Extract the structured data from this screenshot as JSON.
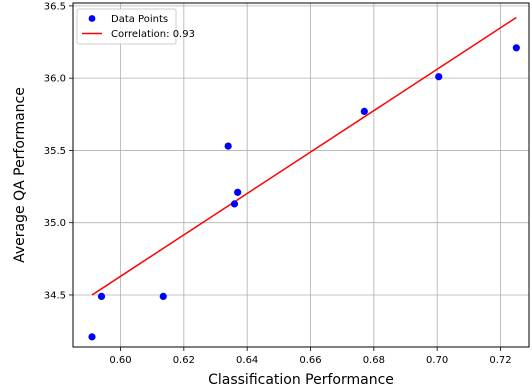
{
  "chart_data": {
    "type": "scatter",
    "xlabel": "Classification Performance",
    "ylabel": "Average QA Performance",
    "xlim": [
      0.585,
      0.729
    ],
    "ylim": [
      34.14,
      36.52
    ],
    "xticks": [
      0.6,
      0.62,
      0.64,
      0.66,
      0.68,
      0.7,
      0.72
    ],
    "xtick_labels": [
      "0.60",
      "0.62",
      "0.64",
      "0.66",
      "0.68",
      "0.70",
      "0.72"
    ],
    "yticks": [
      34.5,
      35.0,
      35.5,
      36.0,
      36.5
    ],
    "ytick_labels": [
      "34.5",
      "35.0",
      "35.5",
      "36.0",
      "36.5"
    ],
    "grid": true,
    "legend_position": "top-left",
    "series": [
      {
        "name": "Data Points",
        "kind": "scatter",
        "color": "#0000ff",
        "points": [
          {
            "x": 0.591,
            "y": 34.21
          },
          {
            "x": 0.594,
            "y": 34.49
          },
          {
            "x": 0.6135,
            "y": 34.49
          },
          {
            "x": 0.634,
            "y": 35.53
          },
          {
            "x": 0.636,
            "y": 35.13
          },
          {
            "x": 0.637,
            "y": 35.21
          },
          {
            "x": 0.677,
            "y": 35.77
          },
          {
            "x": 0.7005,
            "y": 36.01
          },
          {
            "x": 0.725,
            "y": 36.21
          }
        ]
      },
      {
        "name": "Correlation: 0.93",
        "kind": "line",
        "color": "#ff0000",
        "points": [
          {
            "x": 0.591,
            "y": 34.5
          },
          {
            "x": 0.725,
            "y": 36.42
          }
        ]
      }
    ]
  }
}
